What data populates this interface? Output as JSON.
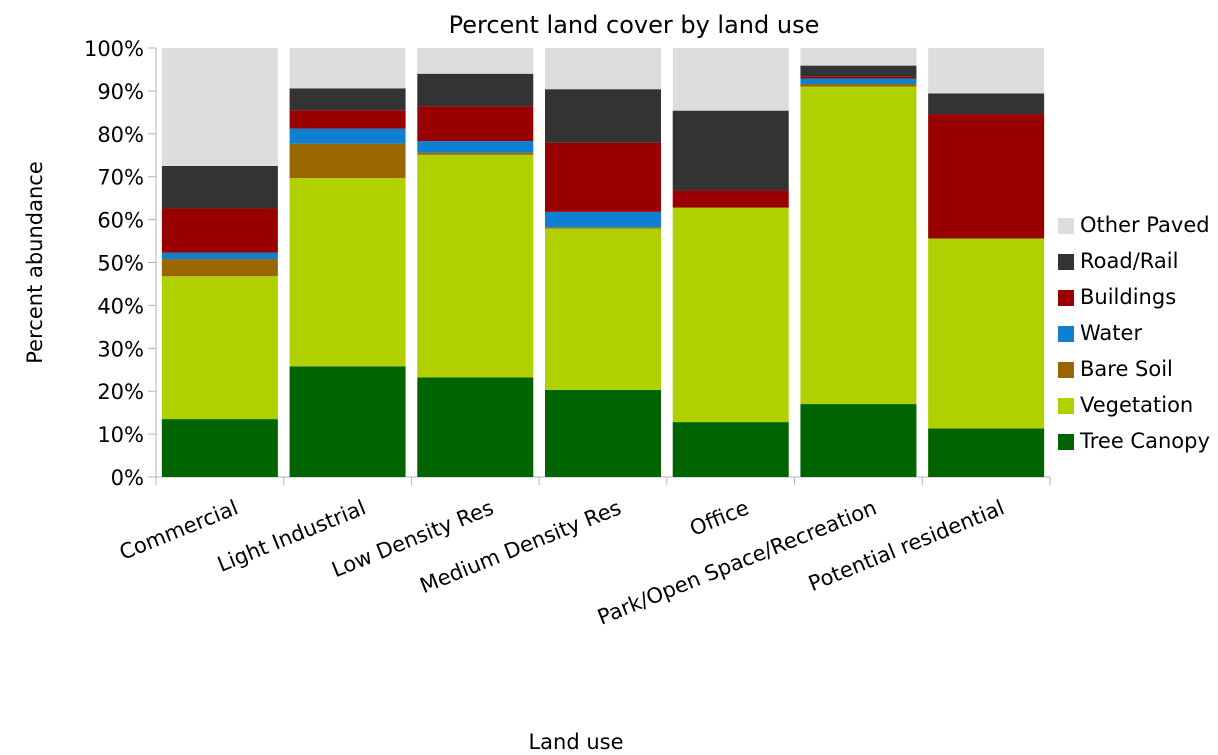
{
  "chart_data": {
    "type": "bar",
    "stacked": true,
    "title": "Percent land cover by land use",
    "xlabel": "Land use",
    "ylabel": "Percent abundance",
    "ylim": [
      0,
      100
    ],
    "yticks": [
      "0%",
      "10%",
      "20%",
      "30%",
      "40%",
      "50%",
      "60%",
      "70%",
      "80%",
      "90%",
      "100%"
    ],
    "categories": [
      "Commercial",
      "Light Industrial",
      "Low Density Res",
      "Medium Density Res",
      "Office",
      "Park/Open Space/Recreation",
      "Potential residential"
    ],
    "series": [
      {
        "name": "Tree Canopy",
        "color": "#006400",
        "values": [
          13.5,
          25.8,
          23.2,
          20.3,
          12.8,
          17.0,
          11.3
        ]
      },
      {
        "name": "Vegetation",
        "color": "#b0d000",
        "values": [
          33.3,
          43.9,
          51.9,
          37.6,
          50.0,
          74.0,
          44.3
        ]
      },
      {
        "name": "Bare Soil",
        "color": "#996600",
        "values": [
          4.0,
          8.0,
          0.5,
          0.3,
          0.0,
          0.6,
          0.0
        ]
      },
      {
        "name": "Water",
        "color": "#0e80d2",
        "values": [
          1.5,
          3.5,
          2.7,
          3.6,
          0.0,
          1.3,
          0.0
        ]
      },
      {
        "name": "Buildings",
        "color": "#990000",
        "values": [
          10.3,
          4.3,
          8.1,
          16.1,
          4.0,
          0.5,
          29.0
        ]
      },
      {
        "name": "Road/Rail",
        "color": "#333333",
        "values": [
          9.9,
          5.1,
          7.6,
          12.5,
          18.6,
          2.5,
          4.8
        ]
      },
      {
        "name": "Other Paved",
        "color": "#dddddd",
        "values": [
          27.5,
          9.4,
          6.0,
          9.6,
          14.6,
          4.1,
          10.6
        ]
      }
    ],
    "legend": {
      "placement": "right",
      "entries": [
        "Other Paved",
        "Road/Rail",
        "Buildings",
        "Water",
        "Bare Soil",
        "Vegetation",
        "Tree Canopy"
      ]
    },
    "grid": false
  }
}
